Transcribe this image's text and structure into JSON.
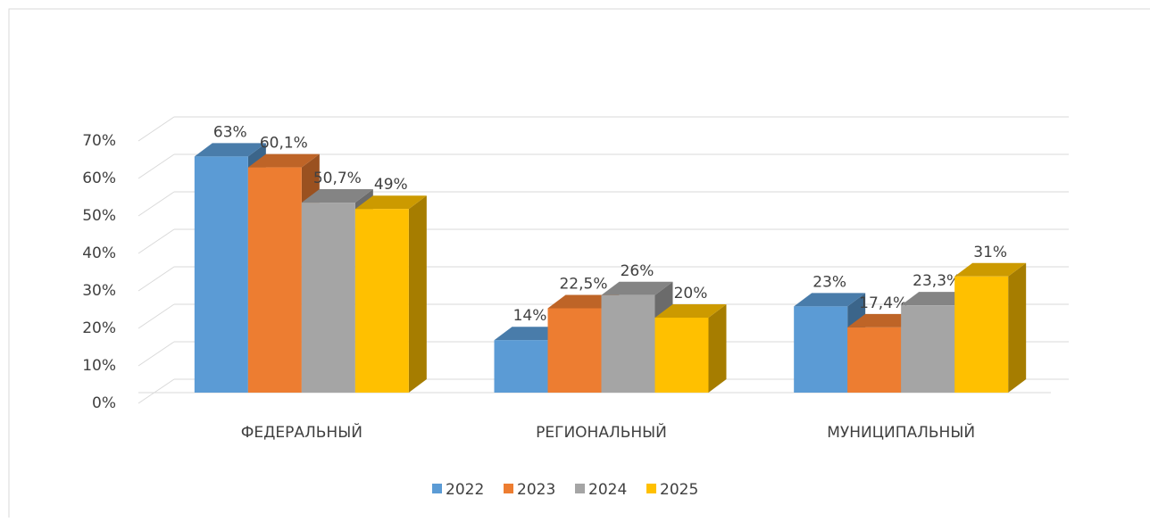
{
  "chart_data": {
    "type": "bar3d",
    "categories": [
      "ФЕДЕРАЛЬНЫЙ",
      "РЕГИОНАЛЬНЫЙ",
      "МУНИЦИПАЛЬНЫЙ"
    ],
    "series": [
      {
        "name": "2022",
        "color": "#5b9bd5",
        "values": [
          63,
          14,
          23
        ],
        "value_labels": [
          "63%",
          "14%",
          "23%"
        ]
      },
      {
        "name": "2023",
        "color": "#ed7d31",
        "values": [
          60.1,
          22.5,
          17.4
        ],
        "value_labels": [
          "60,1%",
          "22,5%",
          "17,4%"
        ]
      },
      {
        "name": "2024",
        "color": "#a5a5a5",
        "values": [
          50.7,
          26,
          23.3
        ],
        "value_labels": [
          "50,7%",
          "26%",
          "23,3%"
        ]
      },
      {
        "name": "2025",
        "color": "#ffc000",
        "values": [
          49,
          20,
          31
        ],
        "value_labels": [
          "49%",
          "20%",
          "31%"
        ]
      }
    ],
    "ylim": [
      0,
      70
    ],
    "yticks": [
      {
        "value": 0,
        "label": "0%"
      },
      {
        "value": 10,
        "label": "10%"
      },
      {
        "value": 20,
        "label": "20%"
      },
      {
        "value": 30,
        "label": "30%"
      },
      {
        "value": 40,
        "label": "40%"
      },
      {
        "value": 50,
        "label": "50%"
      },
      {
        "value": 60,
        "label": "60%"
      },
      {
        "value": 70,
        "label": "70%"
      }
    ],
    "grid": true,
    "legend": "bottom"
  }
}
